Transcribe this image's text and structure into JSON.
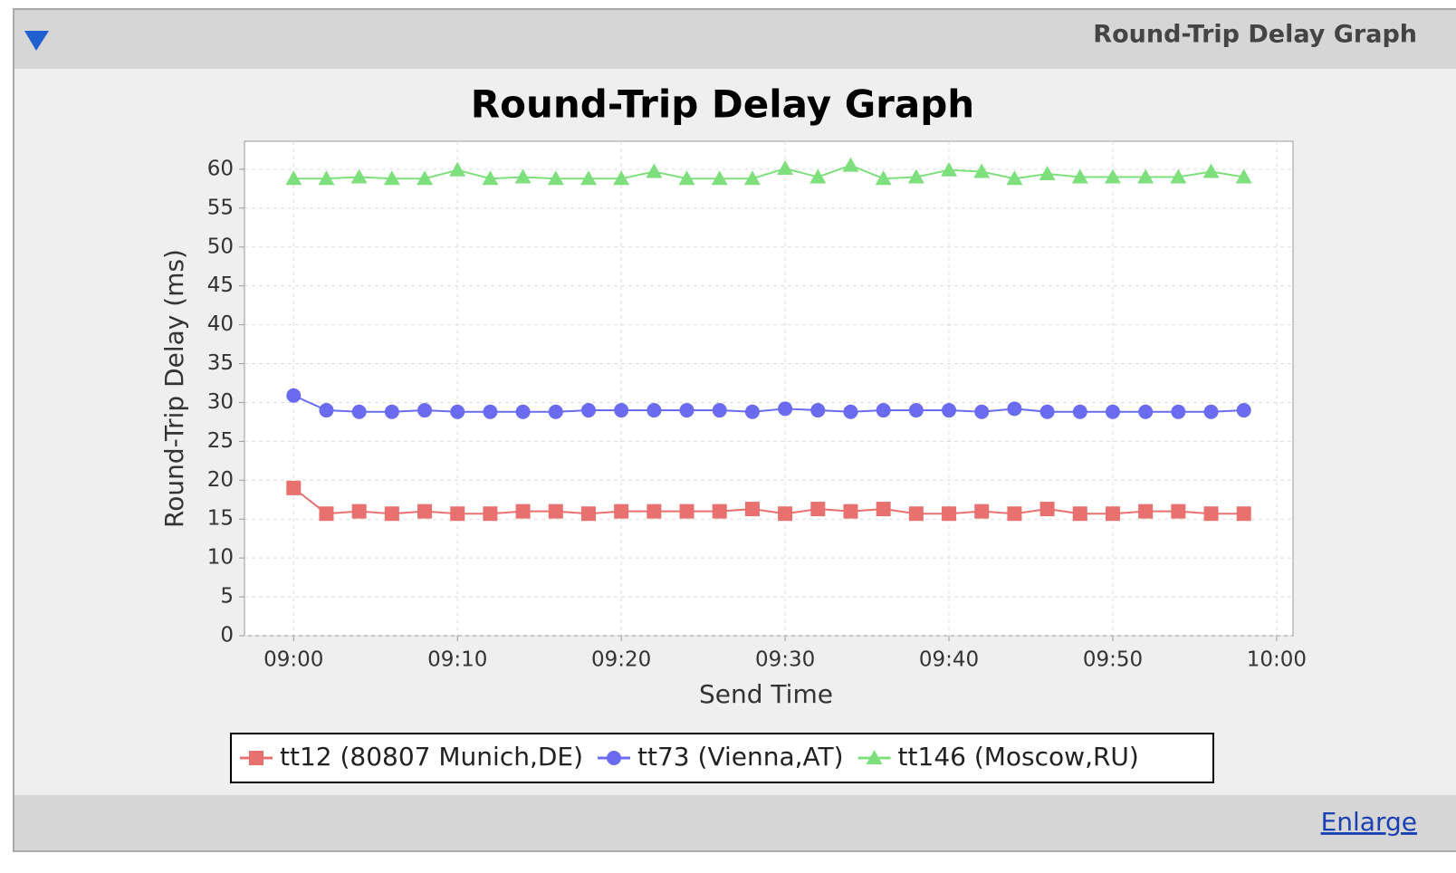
{
  "panel": {
    "header_title": "Round-Trip Delay Graph",
    "enlarge": "Enlarge"
  },
  "chart_data": {
    "type": "line",
    "title": "Round-Trip Delay Graph",
    "x_label": "Send Time",
    "y_label": "Round-Trip Delay (ms)",
    "x": [
      "09:00",
      "09:02",
      "09:04",
      "09:06",
      "09:08",
      "09:10",
      "09:12",
      "09:14",
      "09:16",
      "09:18",
      "09:20",
      "09:22",
      "09:24",
      "09:26",
      "09:28",
      "09:30",
      "09:32",
      "09:34",
      "09:36",
      "09:38",
      "09:40",
      "09:42",
      "09:44",
      "09:46",
      "09:48",
      "09:50",
      "09:52",
      "09:54",
      "09:56",
      "09:58"
    ],
    "xlim": [
      "08:57",
      "10:01"
    ],
    "xticks": [
      "09:00",
      "09:10",
      "09:20",
      "09:30",
      "09:40",
      "09:50",
      "10:00"
    ],
    "ylim": [
      0,
      63.6
    ],
    "yticks": [
      0,
      5,
      10,
      15,
      20,
      25,
      30,
      35,
      40,
      45,
      50,
      55,
      60
    ],
    "grid": true,
    "series": [
      {
        "name": "tt12 (80807 Munich,DE)",
        "color": "#e8716f",
        "marker": "square",
        "values": [
          19,
          15.7,
          16,
          15.7,
          16,
          15.7,
          15.7,
          16,
          16,
          15.7,
          16,
          16,
          16,
          16,
          16.3,
          15.7,
          16.3,
          16,
          16.3,
          15.7,
          15.7,
          16,
          15.7,
          16.3,
          15.7,
          15.7,
          16,
          16,
          15.7,
          15.7
        ]
      },
      {
        "name": "tt73 (Vienna,AT)",
        "color": "#6b6bf0",
        "marker": "circle",
        "values": [
          30.9,
          29,
          28.8,
          28.8,
          29,
          28.8,
          28.8,
          28.8,
          28.8,
          29,
          29,
          29,
          29,
          29,
          28.8,
          29.2,
          29,
          28.8,
          29,
          29,
          29,
          28.8,
          29.2,
          28.8,
          28.8,
          28.8,
          28.8,
          28.8,
          28.8,
          29
        ]
      },
      {
        "name": "tt146 (Moscow,RU)",
        "color": "#7de07d",
        "marker": "triangle",
        "values": [
          58.8,
          58.8,
          59,
          58.8,
          58.8,
          59.9,
          58.8,
          59,
          58.8,
          58.8,
          58.8,
          59.7,
          58.8,
          58.8,
          58.8,
          60.1,
          59,
          60.5,
          58.8,
          59,
          59.9,
          59.7,
          58.8,
          59.4,
          59,
          59,
          59,
          59,
          59.7,
          59
        ]
      }
    ]
  }
}
